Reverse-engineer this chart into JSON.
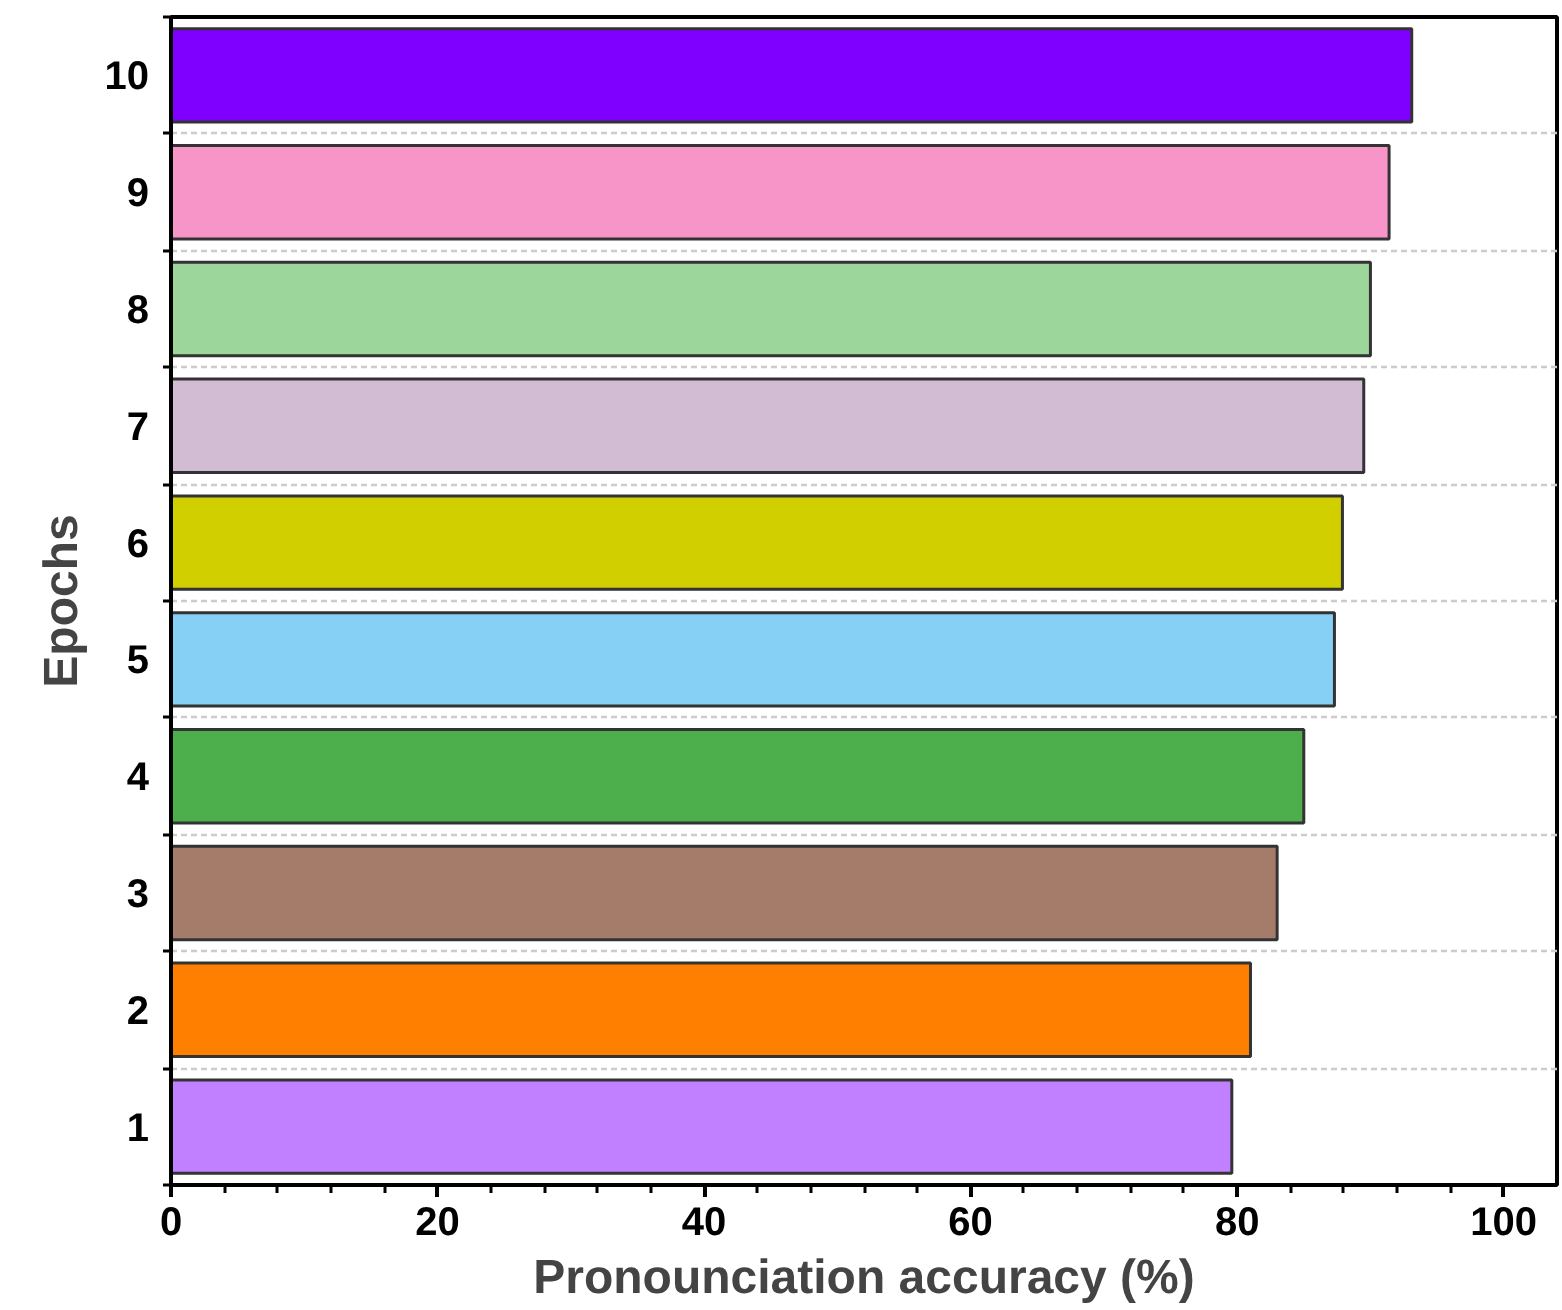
{
  "chart_data": {
    "type": "bar",
    "orientation": "horizontal",
    "xlabel": "Pronounciation accuracy (%)",
    "ylabel": "Epochs",
    "categories": [
      "10",
      "9",
      "8",
      "7",
      "6",
      "5",
      "4",
      "3",
      "2",
      "1"
    ],
    "values": [
      93.1,
      91.4,
      90.0,
      89.5,
      87.9,
      87.3,
      85.0,
      83.0,
      81.0,
      79.6
    ],
    "colors": [
      "#8000ff",
      "#f895c8",
      "#9dd69b",
      "#d1bcd4",
      "#d1cf00",
      "#87d0f5",
      "#4caf4c",
      "#a57c6a",
      "#ff8000",
      "#c080ff"
    ],
    "xlim": [
      0,
      104
    ],
    "xticks": [
      0,
      {
        "value": 4,
        "label": null
      },
      {
        "value": 8,
        "label": null
      },
      {
        "value": 12,
        "label": null
      },
      {
        "value": 16,
        "label": null
      },
      20,
      {
        "value": 24,
        "label": null
      },
      {
        "value": 28,
        "label": null
      },
      {
        "value": 32,
        "label": null
      },
      {
        "value": 36,
        "label": null
      },
      40,
      {
        "value": 44,
        "label": null
      },
      {
        "value": 48,
        "label": null
      },
      {
        "value": 52,
        "label": null
      },
      {
        "value": 56,
        "label": null
      },
      60,
      {
        "value": 64,
        "label": null
      },
      {
        "value": 68,
        "label": null
      },
      {
        "value": 72,
        "label": null
      },
      {
        "value": 76,
        "label": null
      },
      80,
      {
        "value": 84,
        "label": null
      },
      {
        "value": 88,
        "label": null
      },
      {
        "value": 92,
        "label": null
      },
      {
        "value": 96,
        "label": null
      },
      100
    ],
    "grid": "y"
  }
}
